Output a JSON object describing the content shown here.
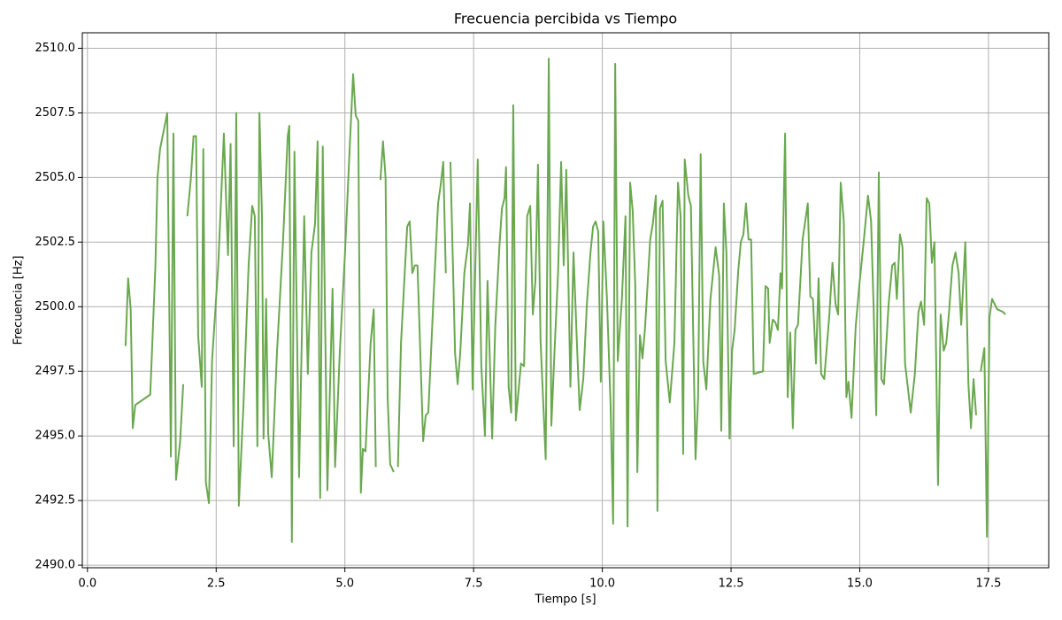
{
  "chart_data": {
    "type": "line",
    "title": "Frecuencia percibida vs Tiempo",
    "x_label": "Tiempo [s]",
    "y_label": "Frecuencia [Hz]",
    "xlim": [
      -0.1,
      18.67
    ],
    "ylim": [
      2489.9,
      2510.6
    ],
    "grid": true,
    "xticks": [
      {
        "value": 0,
        "label": "0.0"
      },
      {
        "value": 2.5,
        "label": "2.5"
      },
      {
        "value": 5,
        "label": "5.0"
      },
      {
        "value": 7.5,
        "label": "7.5"
      },
      {
        "value": 10,
        "label": "10.0"
      },
      {
        "value": 12.5,
        "label": "12.5"
      },
      {
        "value": 15,
        "label": "15.0"
      },
      {
        "value": 17.5,
        "label": "17.5"
      }
    ],
    "yticks": [
      {
        "value": 2490,
        "label": "2490.0"
      },
      {
        "value": 2492.5,
        "label": "2492.5"
      },
      {
        "value": 2495,
        "label": "2495.0"
      },
      {
        "value": 2497.5,
        "label": "2497.5"
      },
      {
        "value": 2500,
        "label": "2500.0"
      },
      {
        "value": 2502.5,
        "label": "2502.5"
      },
      {
        "value": 2505,
        "label": "2505.0"
      },
      {
        "value": 2507.5,
        "label": "2507.5"
      },
      {
        "value": 2510,
        "label": "2510.0"
      }
    ],
    "x": [
      0.74,
      0.79,
      0.84,
      0.88,
      0.93,
      1.22,
      1.32,
      1.36,
      1.41,
      1.55,
      1.62,
      1.67,
      1.72,
      1.8,
      1.86,
      1.9,
      1.94,
      2.01,
      2.06,
      2.11,
      2.15,
      2.22,
      2.25,
      2.3,
      2.36,
      2.42,
      2.54,
      2.65,
      2.73,
      2.78,
      2.84,
      2.89,
      2.94,
      3.03,
      3.13,
      3.2,
      3.25,
      3.3,
      3.34,
      3.39,
      3.42,
      3.47,
      3.51,
      3.58,
      3.68,
      3.8,
      3.89,
      3.92,
      3.97,
      4.02,
      4.11,
      4.21,
      4.28,
      4.35,
      4.42,
      4.47,
      4.52,
      4.57,
      4.66,
      4.76,
      4.81,
      4.9,
      5.0,
      5.09,
      5.16,
      5.21,
      5.26,
      5.31,
      5.35,
      5.4,
      5.5,
      5.56,
      5.6,
      5.65,
      5.69,
      5.74,
      5.79,
      5.83,
      5.88,
      5.95,
      5.99,
      6.03,
      6.09,
      6.21,
      6.26,
      6.31,
      6.36,
      6.41,
      6.52,
      6.57,
      6.62,
      6.72,
      6.81,
      6.86,
      6.91,
      6.96,
      7.0,
      7.05,
      7.14,
      7.19,
      7.24,
      7.32,
      7.39,
      7.43,
      7.48,
      7.58,
      7.65,
      7.72,
      7.77,
      7.86,
      7.92,
      8.0,
      8.05,
      8.1,
      8.13,
      8.18,
      8.23,
      8.27,
      8.32,
      8.42,
      8.48,
      8.54,
      8.6,
      8.65,
      8.7,
      8.75,
      8.8,
      8.9,
      8.96,
      9.01,
      9.07,
      9.14,
      9.2,
      9.25,
      9.3,
      9.38,
      9.44,
      9.51,
      9.56,
      9.63,
      9.7,
      9.77,
      9.82,
      9.87,
      9.92,
      9.97,
      10.02,
      10.09,
      10.16,
      10.21,
      10.25,
      10.3,
      10.38,
      10.45,
      10.49,
      10.54,
      10.59,
      10.64,
      10.68,
      10.73,
      10.78,
      10.83,
      10.93,
      10.98,
      11.04,
      11.07,
      11.12,
      11.17,
      11.23,
      11.31,
      11.4,
      11.47,
      11.52,
      11.57,
      11.6,
      11.67,
      11.72,
      11.81,
      11.86,
      11.91,
      11.96,
      12.02,
      12.1,
      12.2,
      12.27,
      12.31,
      12.36,
      12.41,
      12.47,
      12.52,
      12.57,
      12.64,
      12.69,
      12.74,
      12.79,
      12.84,
      12.89,
      12.94,
      13.12,
      13.17,
      13.22,
      13.25,
      13.31,
      13.36,
      13.41,
      13.46,
      13.49,
      13.55,
      13.6,
      13.65,
      13.7,
      13.75,
      13.8,
      13.89,
      13.94,
      13.99,
      14.04,
      14.09,
      14.15,
      14.2,
      14.25,
      14.31,
      14.41,
      14.47,
      14.53,
      14.58,
      14.63,
      14.69,
      14.74,
      14.78,
      14.84,
      14.92,
      14.99,
      15.09,
      15.16,
      15.22,
      15.27,
      15.32,
      15.37,
      15.42,
      15.47,
      15.56,
      15.63,
      15.68,
      15.72,
      15.78,
      15.83,
      15.88,
      15.99,
      16.07,
      16.14,
      16.19,
      16.25,
      16.3,
      16.35,
      16.4,
      16.45,
      16.52,
      16.57,
      16.63,
      16.68,
      16.73,
      16.8,
      16.86,
      16.92,
      16.97,
      17.05,
      17.11,
      17.16,
      17.21,
      17.26,
      17.3,
      17.35,
      17.42,
      17.47,
      17.52,
      17.57,
      17.67,
      17.78,
      17.83
    ],
    "series": [
      {
        "color": "#6aa84f",
        "values": [
          2498.48,
          2501.1,
          2499.9,
          2495.3,
          2496.2,
          2496.6,
          2501.6,
          2505.0,
          2506.1,
          2507.5,
          2494.2,
          2506.7,
          2493.3,
          2494.8,
          2497.0,
          null,
          2503.5,
          2505.0,
          2506.6,
          2506.6,
          2498.9,
          2496.9,
          2506.1,
          2493.2,
          2492.4,
          2497.9,
          2501.6,
          2506.7,
          2502.0,
          2506.3,
          2494.6,
          2507.5,
          2492.3,
          2496.2,
          2501.6,
          2503.9,
          2503.5,
          2494.6,
          2507.5,
          2503.5,
          2494.9,
          2500.3,
          2495.1,
          2493.4,
          2498.2,
          2502.6,
          2506.6,
          2507.0,
          2490.9,
          2506.0,
          2493.4,
          2503.5,
          2497.4,
          2502.1,
          2503.2,
          2506.4,
          2492.6,
          2506.2,
          2492.9,
          2500.7,
          2493.8,
          2498.2,
          2502.0,
          2506.0,
          2509.0,
          2507.4,
          2507.2,
          2492.8,
          2494.5,
          2494.4,
          2498.6,
          2499.9,
          2493.8,
          null,
          2504.9,
          2506.4,
          2505.0,
          2496.5,
          2493.9,
          2493.6,
          null,
          2493.8,
          2498.6,
          2503.1,
          2503.3,
          2501.3,
          2501.6,
          2501.6,
          2494.8,
          2495.8,
          2495.9,
          2500.3,
          2504.0,
          2504.7,
          2505.6,
          2501.3,
          null,
          2505.6,
          2498.2,
          2497.0,
          2498.2,
          2501.3,
          2502.4,
          2504.0,
          2496.8,
          2505.7,
          2497.7,
          2495.0,
          2501.0,
          2494.9,
          2499.2,
          2502.3,
          2503.8,
          2504.2,
          2505.4,
          2496.9,
          2495.9,
          2507.8,
          2495.6,
          2497.8,
          2497.7,
          2503.5,
          2503.9,
          2499.7,
          2501.0,
          2505.5,
          2498.7,
          2494.1,
          2509.6,
          2495.4,
          2498.2,
          2501.3,
          2505.6,
          2501.6,
          2505.3,
          2496.9,
          2502.1,
          2498.4,
          2496.0,
          2497.2,
          2500.1,
          2502.1,
          2503.1,
          2503.3,
          2502.9,
          2497.1,
          2503.3,
          2500.3,
          2496.2,
          2491.6,
          2509.4,
          2497.9,
          2500.3,
          2503.5,
          2491.5,
          2504.8,
          2503.7,
          2500.8,
          2493.6,
          2498.9,
          2498.0,
          2499.2,
          2502.6,
          2503.2,
          2504.3,
          2492.1,
          2503.8,
          2504.1,
          2497.9,
          2496.3,
          2498.6,
          2504.8,
          2503.5,
          2494.3,
          2505.7,
          2504.3,
          2503.9,
          2494.1,
          2496.5,
          2505.9,
          2497.9,
          2496.8,
          2500.3,
          2502.3,
          2501.2,
          2495.2,
          2504.0,
          2502.1,
          2494.9,
          2498.3,
          2499.1,
          2501.4,
          2502.5,
          2502.8,
          2504.0,
          2502.6,
          2502.6,
          2497.4,
          2497.5,
          2500.8,
          2500.7,
          2498.6,
          2499.5,
          2499.4,
          2499.1,
          2501.3,
          2500.7,
          2506.7,
          2496.5,
          2499.0,
          2495.3,
          2499.1,
          2499.3,
          2502.6,
          2503.3,
          2504.0,
          2500.4,
          2500.3,
          2497.8,
          2501.1,
          2497.4,
          2497.2,
          2499.7,
          2501.7,
          2500.1,
          2499.7,
          2504.8,
          2503.3,
          2496.5,
          2497.1,
          2495.7,
          2499.2,
          2500.8,
          2502.8,
          2504.3,
          2503.3,
          2499.9,
          2495.8,
          2505.2,
          2497.2,
          2497.0,
          2500.1,
          2501.6,
          2501.7,
          2500.3,
          2502.8,
          2502.3,
          2497.8,
          2495.9,
          2497.4,
          2499.8,
          2500.2,
          2499.3,
          2504.2,
          2504.0,
          2501.7,
          2502.5,
          2493.1,
          2499.7,
          2498.3,
          2498.6,
          2499.7,
          2501.6,
          2502.1,
          2501.3,
          2499.3,
          2502.5,
          2497.0,
          2495.3,
          2497.2,
          2495.8,
          null,
          2497.5,
          2498.4,
          2491.1,
          2499.6,
          2500.3,
          2499.9,
          2499.8,
          2499.7
        ]
      }
    ]
  }
}
